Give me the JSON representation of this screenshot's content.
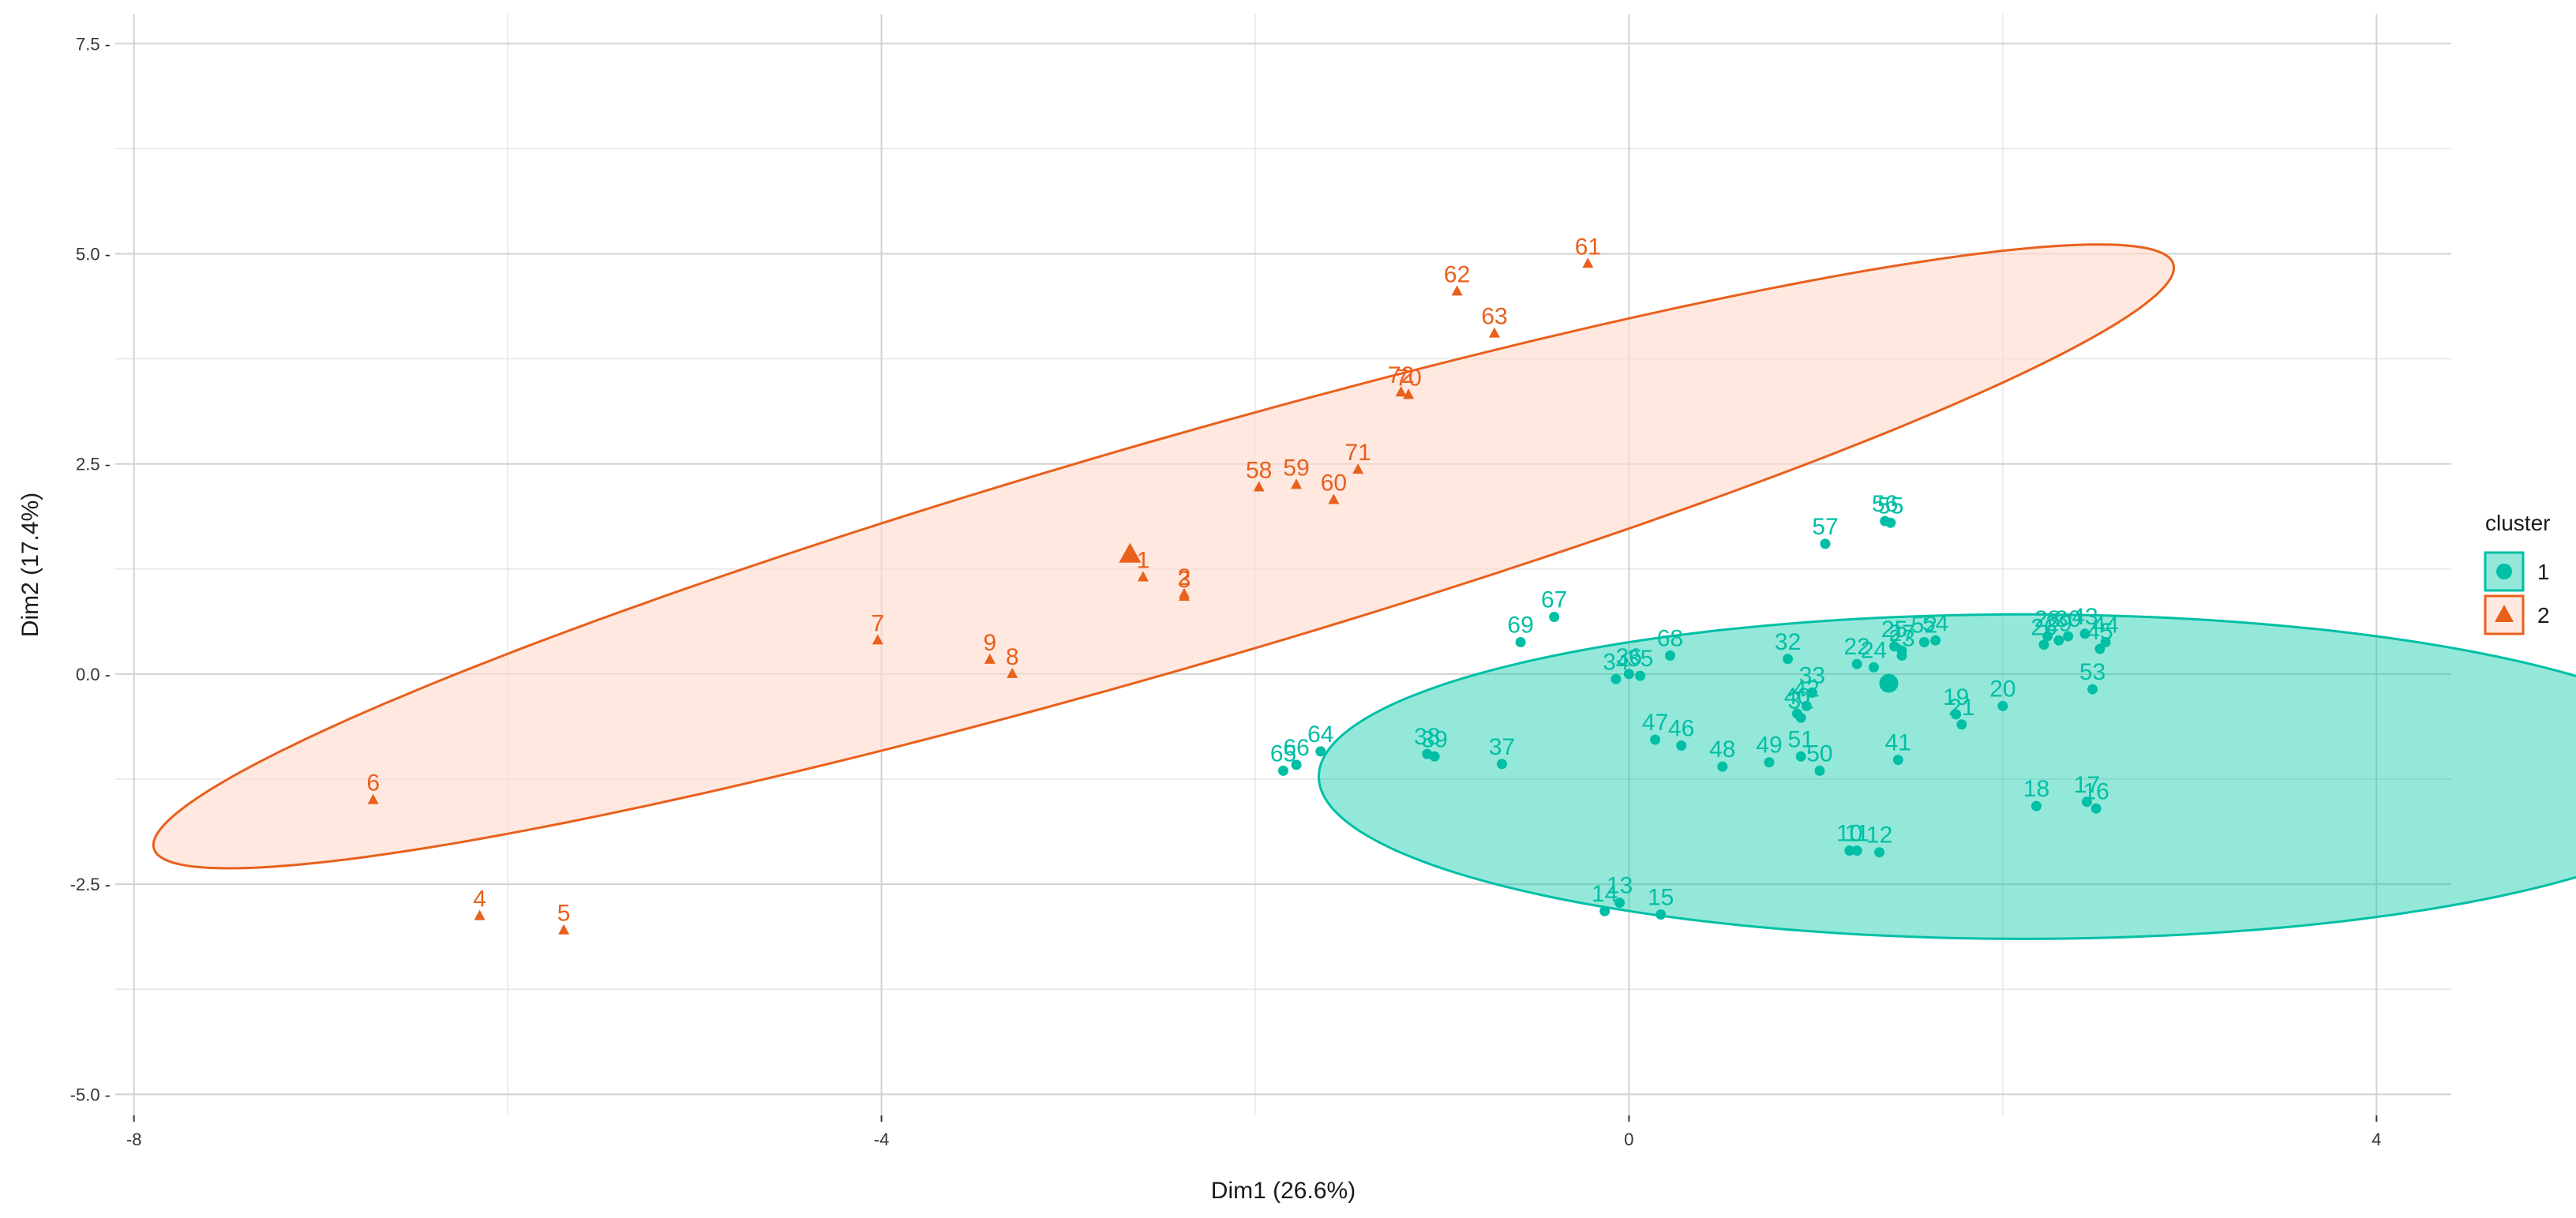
{
  "chart_data": {
    "type": "scatter",
    "title": "",
    "xlabel": "Dim1 (26.6%)",
    "ylabel": "Dim2 (17.4%)",
    "xlim": [
      -8.1,
      4.4
    ],
    "ylim": [
      -5.25,
      7.85
    ],
    "x_ticks": [
      -8,
      -4,
      0,
      4
    ],
    "x_tick_labels": [
      "-8",
      "-4",
      "0",
      "4"
    ],
    "y_ticks": [
      -5.0,
      -2.5,
      0.0,
      2.5,
      5.0,
      7.5
    ],
    "y_tick_labels": [
      "-5.0 -",
      "-2.5 -",
      "0.0 -",
      "2.5 -",
      "5.0 -",
      "7.5 -"
    ],
    "grid": true,
    "legend": {
      "title": "cluster",
      "position": "right",
      "entries": [
        "1",
        "2"
      ]
    },
    "colors": {
      "cluster1": "#00BFA5",
      "cluster2": "#E8601C",
      "cluster1_fill": "#00C8A8",
      "cluster2_fill": "#FDDCD0"
    },
    "ellipses": [
      {
        "cluster": "2",
        "center": [
          -2.49,
          1.4
        ],
        "a": 6.45,
        "b": 1.18,
        "angle_deg": 33.7
      },
      {
        "cluster": "1",
        "center": [
          2.11,
          -1.22
        ],
        "a": 3.77,
        "b": 1.93,
        "angle_deg": 0
      }
    ],
    "centroids": [
      {
        "cluster": "2",
        "x": -2.67,
        "y": 1.42
      },
      {
        "cluster": "1",
        "x": 1.39,
        "y": -0.11
      }
    ],
    "series": [
      {
        "name": "2",
        "points": [
          {
            "label": "1",
            "x": -2.6,
            "y": 1.15
          },
          {
            "label": "2",
            "x": -2.38,
            "y": 0.95
          },
          {
            "label": "3",
            "x": -2.38,
            "y": 0.92
          },
          {
            "label": "4",
            "x": -6.15,
            "y": -2.88
          },
          {
            "label": "5",
            "x": -5.7,
            "y": -3.05
          },
          {
            "label": "6",
            "x": -6.72,
            "y": -1.5
          },
          {
            "label": "7",
            "x": -4.02,
            "y": 0.4
          },
          {
            "label": "8",
            "x": -3.3,
            "y": 0.0
          },
          {
            "label": "9",
            "x": -3.42,
            "y": 0.17
          },
          {
            "label": "58",
            "x": -1.98,
            "y": 2.22
          },
          {
            "label": "59",
            "x": -1.78,
            "y": 2.25
          },
          {
            "label": "60",
            "x": -1.58,
            "y": 2.07
          },
          {
            "label": "61",
            "x": -0.22,
            "y": 4.88
          },
          {
            "label": "62",
            "x": -0.92,
            "y": 4.55
          },
          {
            "label": "63",
            "x": -0.72,
            "y": 4.05
          },
          {
            "label": "70",
            "x": -1.18,
            "y": 3.32
          },
          {
            "label": "71",
            "x": -1.45,
            "y": 2.43
          },
          {
            "label": "72",
            "x": -1.22,
            "y": 3.35
          }
        ]
      },
      {
        "name": "1",
        "points": [
          {
            "label": "10",
            "x": 1.18,
            "y": -2.1
          },
          {
            "label": "11",
            "x": 1.22,
            "y": -2.1
          },
          {
            "label": "12",
            "x": 1.34,
            "y": -2.12
          },
          {
            "label": "13",
            "x": -0.05,
            "y": -2.72
          },
          {
            "label": "14",
            "x": -0.13,
            "y": -2.82
          },
          {
            "label": "15",
            "x": 0.17,
            "y": -2.86
          },
          {
            "label": "16",
            "x": 2.5,
            "y": -1.6
          },
          {
            "label": "17",
            "x": 2.45,
            "y": -1.52
          },
          {
            "label": "18",
            "x": 2.18,
            "y": -1.57
          },
          {
            "label": "19",
            "x": 1.75,
            "y": -0.48
          },
          {
            "label": "20",
            "x": 2.0,
            "y": -0.38
          },
          {
            "label": "21",
            "x": 1.78,
            "y": -0.6
          },
          {
            "label": "22",
            "x": 1.22,
            "y": 0.12
          },
          {
            "label": "23",
            "x": 1.46,
            "y": 0.22
          },
          {
            "label": "24",
            "x": 1.31,
            "y": 0.08
          },
          {
            "label": "25",
            "x": 1.42,
            "y": 0.33
          },
          {
            "label": "26",
            "x": 2.22,
            "y": 0.35
          },
          {
            "label": "27",
            "x": 1.46,
            "y": 0.28
          },
          {
            "label": "28",
            "x": 2.24,
            "y": 0.45
          },
          {
            "label": "29",
            "x": 2.3,
            "y": 0.4
          },
          {
            "label": "30",
            "x": 2.35,
            "y": 0.45
          },
          {
            "label": "31",
            "x": 0.92,
            "y": -0.52
          },
          {
            "label": "32",
            "x": 0.85,
            "y": 0.18
          },
          {
            "label": "33",
            "x": 0.98,
            "y": -0.22
          },
          {
            "label": "34",
            "x": -0.07,
            "y": -0.06
          },
          {
            "label": "35",
            "x": 0.06,
            "y": -0.02
          },
          {
            "label": "36",
            "x": 0.0,
            "y": 0.0
          },
          {
            "label": "37",
            "x": -0.68,
            "y": -1.07
          },
          {
            "label": "38",
            "x": -1.08,
            "y": -0.95
          },
          {
            "label": "39",
            "x": -1.04,
            "y": -0.98
          },
          {
            "label": "40",
            "x": 0.9,
            "y": -0.47
          },
          {
            "label": "41",
            "x": 1.44,
            "y": -1.02
          },
          {
            "label": "42",
            "x": 0.95,
            "y": -0.38
          },
          {
            "label": "43",
            "x": 2.44,
            "y": 0.48
          },
          {
            "label": "44",
            "x": 2.55,
            "y": 0.38
          },
          {
            "label": "45",
            "x": 2.52,
            "y": 0.3
          },
          {
            "label": "46",
            "x": 0.28,
            "y": -0.85
          },
          {
            "label": "47",
            "x": 0.14,
            "y": -0.78
          },
          {
            "label": "48",
            "x": 0.5,
            "y": -1.1
          },
          {
            "label": "49",
            "x": 0.75,
            "y": -1.05
          },
          {
            "label": "50",
            "x": 1.02,
            "y": -1.15
          },
          {
            "label": "51",
            "x": 0.92,
            "y": -0.98
          },
          {
            "label": "52",
            "x": 1.58,
            "y": 0.38
          },
          {
            "label": "53",
            "x": 2.48,
            "y": -0.18
          },
          {
            "label": "54",
            "x": 1.64,
            "y": 0.4
          },
          {
            "label": "55",
            "x": 1.4,
            "y": 1.8
          },
          {
            "label": "56",
            "x": 1.37,
            "y": 1.82
          },
          {
            "label": "57",
            "x": 1.05,
            "y": 1.55
          },
          {
            "label": "64",
            "x": -1.65,
            "y": -0.92
          },
          {
            "label": "65",
            "x": -1.85,
            "y": -1.15
          },
          {
            "label": "66",
            "x": -1.78,
            "y": -1.08
          },
          {
            "label": "67",
            "x": -0.4,
            "y": 0.68
          },
          {
            "label": "68",
            "x": 0.22,
            "y": 0.22
          },
          {
            "label": "69",
            "x": -0.58,
            "y": 0.38
          }
        ]
      }
    ]
  }
}
